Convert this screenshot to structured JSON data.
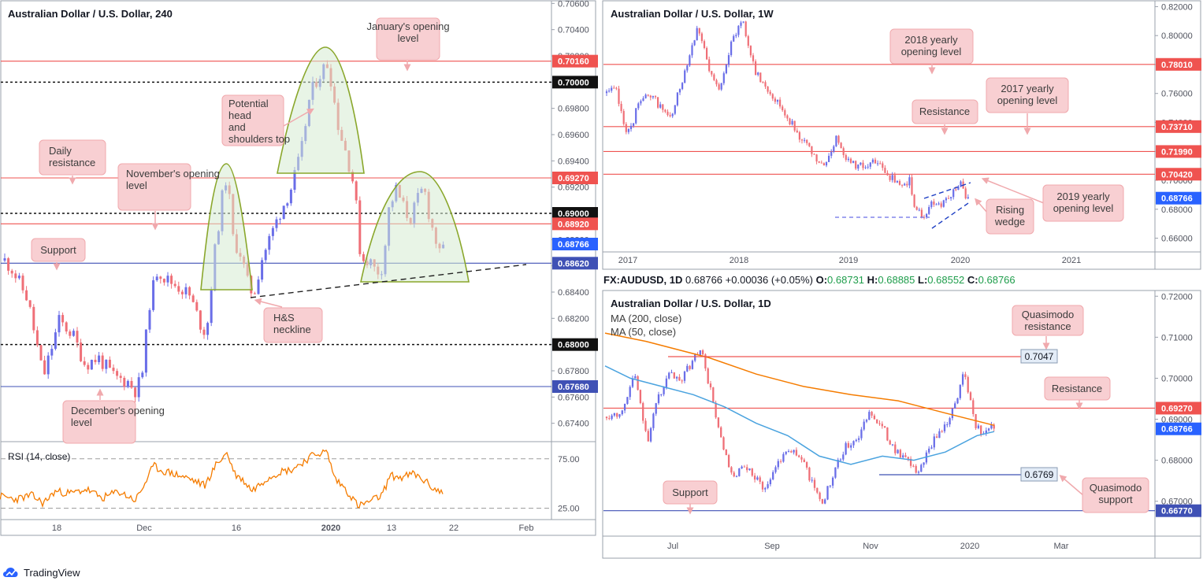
{
  "brand": "TradingView",
  "colors": {
    "bull": "#6a6ee8",
    "bear": "#ef6f77",
    "resistance": "#ef5350",
    "support": "#3f51b5",
    "annotation_fill": "#f8cfd2",
    "annotation_stroke": "#f0a9ad",
    "pattern": "#8aa72c",
    "rsi": "#f57c00",
    "ma200": "#f57c00",
    "ma50": "#4aa3df"
  },
  "chart_data": [
    {
      "id": "h4",
      "type": "candlestick",
      "title": "Australian Dollar / U.S. Dollar, 240",
      "ylim": [
        0.6726,
        0.7062
      ],
      "y_ticks": [
        "0.70600",
        "0.70400",
        "0.70200",
        "0.70000",
        "0.69800",
        "0.69600",
        "0.69400",
        "0.69200",
        "0.69000",
        "0.68800",
        "0.68600",
        "0.68400",
        "0.68200",
        "0.68000",
        "0.67800",
        "0.67600",
        "0.67400"
      ],
      "x_ticks": [
        "18",
        "Dec",
        "16",
        "2020",
        "13",
        "22",
        "Feb"
      ],
      "x_tick_pos": [
        72,
        183,
        300,
        420,
        497,
        576,
        668
      ],
      "x_tick_bold": [
        false,
        false,
        false,
        true,
        false,
        false,
        false
      ],
      "levels": [
        {
          "value": 0.7016,
          "label": "0.70160",
          "kind": "resistance"
        },
        {
          "value": 0.7,
          "label": "0.70000",
          "kind": "round"
        },
        {
          "value": 0.6927,
          "label": "0.69270",
          "kind": "resistance"
        },
        {
          "value": 0.69,
          "label": "0.69000",
          "kind": "round"
        },
        {
          "value": 0.6892,
          "label": "0.68920",
          "kind": "resistance"
        },
        {
          "value": 0.6862,
          "label": "0.68620",
          "kind": "support"
        },
        {
          "value": 0.68,
          "label": "0.68000",
          "kind": "round"
        },
        {
          "value": 0.6768,
          "label": "0.67680",
          "kind": "support"
        }
      ],
      "price": {
        "value": 0.68766,
        "label": "0.68766"
      },
      "path": [
        [
          0,
          0.6868
        ],
        [
          15,
          0.6858
        ],
        [
          35,
          0.6835
        ],
        [
          55,
          0.6775
        ],
        [
          75,
          0.6818
        ],
        [
          92,
          0.6808
        ],
        [
          108,
          0.6785
        ],
        [
          125,
          0.679
        ],
        [
          145,
          0.6775
        ],
        [
          162,
          0.6772
        ],
        [
          172,
          0.6765
        ],
        [
          180,
          0.6775
        ],
        [
          190,
          0.6832
        ],
        [
          200,
          0.6858
        ],
        [
          210,
          0.685
        ],
        [
          225,
          0.6845
        ],
        [
          240,
          0.6838
        ],
        [
          255,
          0.6815
        ],
        [
          262,
          0.6808
        ],
        [
          272,
          0.6868
        ],
        [
          282,
          0.6912
        ],
        [
          288,
          0.693
        ],
        [
          296,
          0.688
        ],
        [
          305,
          0.687
        ],
        [
          315,
          0.6845
        ],
        [
          322,
          0.6838
        ],
        [
          332,
          0.6865
        ],
        [
          345,
          0.6885
        ],
        [
          355,
          0.69
        ],
        [
          370,
          0.692
        ],
        [
          382,
          0.6945
        ],
        [
          392,
          0.6985
        ],
        [
          400,
          0.7
        ],
        [
          410,
          0.701
        ],
        [
          417,
          0.7015
        ],
        [
          423,
          0.699
        ],
        [
          430,
          0.6965
        ],
        [
          440,
          0.6945
        ],
        [
          450,
          0.692
        ],
        [
          458,
          0.6865
        ],
        [
          468,
          0.6865
        ],
        [
          478,
          0.6855
        ],
        [
          486,
          0.686
        ],
        [
          494,
          0.6905
        ],
        [
          503,
          0.6918
        ],
        [
          512,
          0.6905
        ],
        [
          520,
          0.6895
        ],
        [
          530,
          0.691
        ],
        [
          538,
          0.692
        ],
        [
          546,
          0.6895
        ],
        [
          552,
          0.6882
        ],
        [
          558,
          0.6868
        ],
        [
          565,
          0.6875
        ]
      ],
      "path_seed": 11,
      "bar_start": 6,
      "bar_end": 565,
      "bar_step": 4.6,
      "annotations": {
        "january_open": "January's opening level",
        "hs_top": "Potential head and shoulders top",
        "daily_resistance": "Daily resistance",
        "november_open": "November's opening level",
        "support": "Support",
        "neckline": "H&S neckline",
        "december_open": "December's opening level"
      },
      "rsi": {
        "title": "RSI (14, close)",
        "levels": [
          75,
          25
        ],
        "level_labels": [
          "75.00",
          "25.00"
        ],
        "ylim": [
          15,
          90
        ],
        "path": [
          [
            0,
            37
          ],
          [
            20,
            34
          ],
          [
            40,
            38
          ],
          [
            55,
            30
          ],
          [
            70,
            42
          ],
          [
            90,
            40
          ],
          [
            110,
            44
          ],
          [
            130,
            35
          ],
          [
            150,
            42
          ],
          [
            172,
            33
          ],
          [
            182,
            47
          ],
          [
            195,
            68
          ],
          [
            205,
            63
          ],
          [
            220,
            60
          ],
          [
            240,
            55
          ],
          [
            260,
            48
          ],
          [
            275,
            70
          ],
          [
            288,
            81
          ],
          [
            298,
            60
          ],
          [
            310,
            52
          ],
          [
            320,
            43
          ],
          [
            338,
            55
          ],
          [
            355,
            62
          ],
          [
            370,
            64
          ],
          [
            385,
            72
          ],
          [
            400,
            80
          ],
          [
            415,
            82
          ],
          [
            425,
            55
          ],
          [
            438,
            45
          ],
          [
            455,
            27
          ],
          [
            470,
            32
          ],
          [
            485,
            38
          ],
          [
            495,
            58
          ],
          [
            510,
            56
          ],
          [
            525,
            60
          ],
          [
            540,
            52
          ],
          [
            550,
            45
          ],
          [
            563,
            40
          ]
        ],
        "path_seed": 23
      }
    },
    {
      "id": "weekly",
      "type": "candlestick",
      "title": "Australian Dollar / U.S. Dollar, 1W",
      "ylim": [
        0.6505,
        0.8235
      ],
      "y_ticks": [
        "0.82000",
        "0.80000",
        "0.78000",
        "0.76000",
        "0.74000",
        "0.72000",
        "0.70000",
        "0.68000",
        "0.66000"
      ],
      "x_ticks": [
        "2017",
        "2018",
        "2019",
        "2020",
        "2021"
      ],
      "x_tick_pos": [
        797,
        938,
        1077,
        1219,
        1360
      ],
      "levels": [
        {
          "value": 0.7801,
          "label": "0.78010",
          "kind": "resistance"
        },
        {
          "value": 0.7371,
          "label": "0.73710",
          "kind": "resistance"
        },
        {
          "value": 0.7199,
          "label": "0.71990",
          "kind": "resistance"
        },
        {
          "value": 0.7042,
          "label": "0.70420",
          "kind": "resistance"
        }
      ],
      "price": {
        "value": 0.68766,
        "label": "0.68766"
      },
      "path": [
        [
          768,
          0.76
        ],
        [
          782,
          0.762
        ],
        [
          792,
          0.738
        ],
        [
          800,
          0.733
        ],
        [
          812,
          0.758
        ],
        [
          832,
          0.755
        ],
        [
          852,
          0.742
        ],
        [
          866,
          0.77
        ],
        [
          886,
          0.808
        ],
        [
          900,
          0.775
        ],
        [
          912,
          0.762
        ],
        [
          924,
          0.787
        ],
        [
          942,
          0.813
        ],
        [
          958,
          0.775
        ],
        [
          972,
          0.765
        ],
        [
          990,
          0.752
        ],
        [
          1010,
          0.735
        ],
        [
          1028,
          0.72
        ],
        [
          1045,
          0.708
        ],
        [
          1062,
          0.73
        ],
        [
          1078,
          0.712
        ],
        [
          1095,
          0.71
        ],
        [
          1112,
          0.712
        ],
        [
          1128,
          0.704
        ],
        [
          1142,
          0.695
        ],
        [
          1155,
          0.7
        ],
        [
          1162,
          0.679
        ],
        [
          1172,
          0.675
        ],
        [
          1184,
          0.685
        ],
        [
          1196,
          0.683
        ],
        [
          1208,
          0.69
        ],
        [
          1218,
          0.7
        ],
        [
          1228,
          0.686
        ]
      ],
      "path_seed": 37,
      "bar_start": 770,
      "bar_end": 1229,
      "bar_step": 3.1,
      "annotations": {
        "y2018": "2018 yearly opening level",
        "y2017": "2017 yearly opening level",
        "resistance": "Resistance",
        "y2019": "2019 yearly opening level",
        "wedge": "Rising wedge"
      }
    },
    {
      "id": "daily",
      "type": "candlestick",
      "title": "Australian Dollar / U.S. Dollar, 1D",
      "legend": [
        "MA (200, close)",
        "MA (50, close)"
      ],
      "quote": {
        "symbol": "FX:AUDUSD, 1D",
        "last": "0.68766",
        "change": "+0.00036 (+0.05%)",
        "o_label": "O:",
        "o": "0.68731",
        "h_label": "H:",
        "h": "0.68885",
        "l_label": "L:",
        "l": "0.68552",
        "c_label": "C:",
        "c": "0.68766"
      },
      "ylim": [
        0.6615,
        0.7212
      ],
      "y_ticks": [
        "0.72000",
        "0.71000",
        "0.70000",
        "0.69000",
        "0.68000",
        "0.67000"
      ],
      "x_ticks": [
        "Jul",
        "Sep",
        "Nov",
        "2020",
        "Mar"
      ],
      "x_tick_pos": [
        854,
        980,
        1105,
        1231,
        1347
      ],
      "levels": [
        {
          "value": 0.6927,
          "label": "0.69270",
          "kind": "resistance"
        },
        {
          "value": 0.6677,
          "label": "0.66770",
          "kind": "support"
        }
      ],
      "price": {
        "value": 0.68766,
        "label": "0.68766"
      },
      "callouts": [
        {
          "value": 0.7047,
          "label": "0.7047"
        },
        {
          "value": 0.6769,
          "label": "0.6769"
        }
      ],
      "path": [
        [
          768,
          0.6905
        ],
        [
          790,
          0.692
        ],
        [
          805,
          0.701
        ],
        [
          822,
          0.685
        ],
        [
          835,
          0.695
        ],
        [
          850,
          0.701
        ],
        [
          862,
          0.699
        ],
        [
          878,
          0.704
        ],
        [
          890,
          0.707
        ],
        [
          903,
          0.696
        ],
        [
          915,
          0.685
        ],
        [
          928,
          0.676
        ],
        [
          945,
          0.678
        ],
        [
          958,
          0.676
        ],
        [
          972,
          0.673
        ],
        [
          988,
          0.68
        ],
        [
          1002,
          0.683
        ],
        [
          1018,
          0.68
        ],
        [
          1030,
          0.675
        ],
        [
          1044,
          0.6695
        ],
        [
          1058,
          0.6765
        ],
        [
          1072,
          0.683
        ],
        [
          1090,
          0.686
        ],
        [
          1105,
          0.692
        ],
        [
          1120,
          0.688
        ],
        [
          1135,
          0.683
        ],
        [
          1152,
          0.6795
        ],
        [
          1165,
          0.677
        ],
        [
          1178,
          0.682
        ],
        [
          1192,
          0.687
        ],
        [
          1205,
          0.69
        ],
        [
          1215,
          0.695
        ],
        [
          1222,
          0.702
        ],
        [
          1230,
          0.696
        ],
        [
          1238,
          0.689
        ],
        [
          1248,
          0.686
        ],
        [
          1258,
          0.6885
        ],
        [
          1262,
          0.6877
        ]
      ],
      "path_seed": 53,
      "bar_start": 770,
      "bar_end": 1262,
      "bar_step": 3.3,
      "ma200": [
        [
          768,
          0.711
        ],
        [
          820,
          0.709
        ],
        [
          900,
          0.705
        ],
        [
          960,
          0.701
        ],
        [
          1020,
          0.698
        ],
        [
          1080,
          0.696
        ],
        [
          1140,
          0.6945
        ],
        [
          1200,
          0.6915
        ],
        [
          1262,
          0.6885
        ]
      ],
      "ma50": [
        [
          768,
          0.703
        ],
        [
          800,
          0.7
        ],
        [
          840,
          0.698
        ],
        [
          880,
          0.696
        ],
        [
          920,
          0.693
        ],
        [
          960,
          0.689
        ],
        [
          1000,
          0.686
        ],
        [
          1040,
          0.681
        ],
        [
          1080,
          0.679
        ],
        [
          1120,
          0.681
        ],
        [
          1160,
          0.68
        ],
        [
          1200,
          0.682
        ],
        [
          1240,
          0.686
        ],
        [
          1262,
          0.687
        ]
      ],
      "annotations": {
        "qm_res": "Quasimodo resistance",
        "resistance": "Resistance",
        "support": "Support",
        "qm_sup": "Quasimodo support"
      }
    }
  ]
}
